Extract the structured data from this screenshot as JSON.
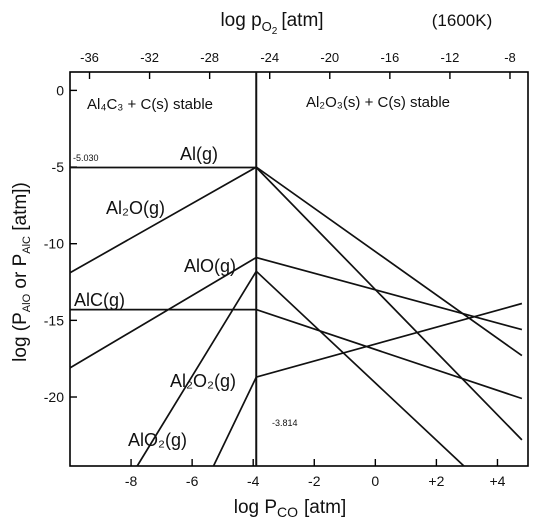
{
  "chart_data": {
    "type": "line",
    "temperature_label": "(1600K)",
    "x_axis": {
      "label": "log P",
      "label_sub": "CO",
      "label_unit": "[atm]",
      "xlim": [
        -10,
        5
      ],
      "ticks": [
        {
          "value": -8,
          "label": "-8"
        },
        {
          "value": -6,
          "label": "-6"
        },
        {
          "value": -4,
          "label": "-4"
        },
        {
          "value": -2,
          "label": "-2"
        },
        {
          "value": 0,
          "label": "0"
        },
        {
          "value": 2,
          "label": "+2"
        },
        {
          "value": 4,
          "label": "+4"
        }
      ]
    },
    "x2_axis": {
      "label": "log p",
      "label_sub": "O",
      "label_sub2": "2",
      "label_unit": "[atm]",
      "ticks": [
        {
          "value": -36,
          "label": "-36"
        },
        {
          "value": -32,
          "label": "-32"
        },
        {
          "value": -28,
          "label": "-28"
        },
        {
          "value": -24,
          "label": "-24"
        },
        {
          "value": -20,
          "label": "-20"
        },
        {
          "value": -16,
          "label": "-16"
        },
        {
          "value": -12,
          "label": "-12"
        },
        {
          "value": -8,
          "label": "-8"
        }
      ]
    },
    "y_axis": {
      "label_pre": "log (P",
      "label_sub1": "AlO",
      "label_mid": " or P",
      "label_sub2": "AlC",
      "label_post": " [atm])",
      "ylim": [
        -24.5,
        1.2
      ],
      "ticks": [
        {
          "value": 0,
          "label": "0"
        },
        {
          "value": -5,
          "label": "-5"
        },
        {
          "value": -10,
          "label": "-10"
        },
        {
          "value": -15,
          "label": "-15"
        },
        {
          "value": -20,
          "label": "-20"
        }
      ]
    },
    "divider_x": -3.9,
    "regions": [
      {
        "id": "al4c3",
        "label": "Al₄C₃ + C(s) stable"
      },
      {
        "id": "al2o3",
        "label": "Al₂O₃(s) + C(s) stable"
      }
    ],
    "annotations": [
      {
        "id": "al-level",
        "text": "-5.030"
      },
      {
        "id": "pco-divider",
        "text": "-3.814"
      }
    ],
    "series": [
      {
        "name": "Al(g)",
        "points": [
          [
            -10,
            -5.03
          ],
          [
            -3.9,
            -5.03
          ],
          [
            -3.9,
            -5.03
          ],
          [
            4.8,
            -22.8
          ]
        ]
      },
      {
        "name": "Al₂O(g)",
        "points": [
          [
            -10,
            -11.9
          ],
          [
            -3.9,
            -5.0
          ],
          [
            4.8,
            -17.3
          ]
        ]
      },
      {
        "name": "AlO(g)",
        "points": [
          [
            -10,
            -18.1
          ],
          [
            -3.9,
            -10.9
          ],
          [
            4.8,
            -15.6
          ]
        ]
      },
      {
        "name": "AlC(g)",
        "points": [
          [
            -10,
            -14.3
          ],
          [
            -3.9,
            -14.3
          ],
          [
            4.8,
            -20.1
          ]
        ]
      },
      {
        "name": "Al₂O₂(g)",
        "points": [
          [
            -7.8,
            -24.5
          ],
          [
            -3.9,
            -11.8
          ],
          [
            2.9,
            -24.5
          ]
        ]
      },
      {
        "name": "AlO₂(g)",
        "points": [
          [
            -5.3,
            -24.5
          ],
          [
            -3.9,
            -18.7
          ],
          [
            4.8,
            -13.9
          ]
        ]
      }
    ]
  }
}
